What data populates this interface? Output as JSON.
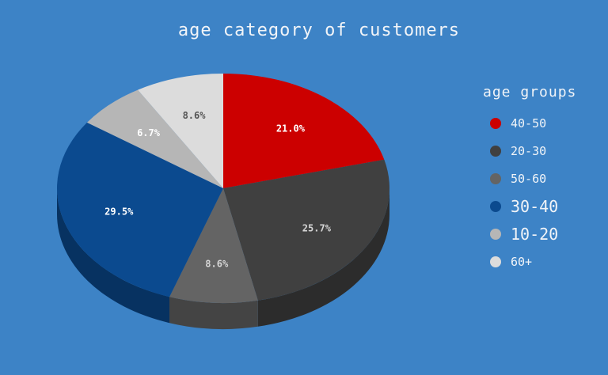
{
  "chart_data": {
    "type": "pie",
    "title": "age category of customers",
    "legend_title": "age groups",
    "legend_position": "right",
    "slices": [
      {
        "label": "40-50",
        "value": 21.0,
        "display": "21.0%",
        "color": "#cc0000",
        "label_color": "#ffffff"
      },
      {
        "label": "20-30",
        "value": 25.7,
        "display": "25.7%",
        "color": "#404040",
        "label_color": "#d6d6d6"
      },
      {
        "label": "50-60",
        "value": 8.6,
        "display": "8.6%",
        "color": "#646464",
        "label_color": "#d6d6d6"
      },
      {
        "label": "30-40",
        "value": 29.5,
        "display": "29.5%",
        "color": "#0b4a8f",
        "label_color": "#ffffff"
      },
      {
        "label": "10-20",
        "value": 6.7,
        "display": "6.7%",
        "color": "#b6b6b6",
        "label_color": "#ffffff"
      },
      {
        "label": "60+",
        "value": 8.6,
        "display": "8.6%",
        "color": "#dcdcdc",
        "label_color": "#555555"
      }
    ]
  }
}
